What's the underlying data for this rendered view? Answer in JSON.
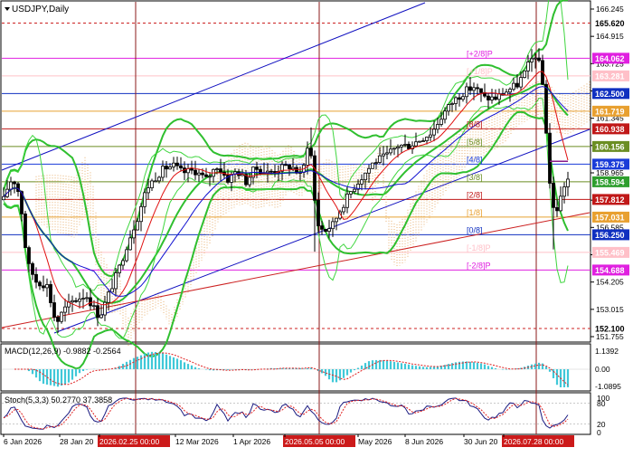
{
  "window": {
    "title": "USDJPY,Daily"
  },
  "price_axis": {
    "plain_ticks": [
      "166.245",
      "164.915",
      "163.725",
      "162.535",
      "161.345",
      "160.155",
      "158.965",
      "157.775",
      "156.585",
      "155.710",
      "154.205",
      "153.015",
      "151.755"
    ],
    "level_labels": [
      {
        "text": "165.620",
        "price": 165.62,
        "bg": "#ffffff",
        "fg": "#000000",
        "line": "#cc2222",
        "dash": true
      },
      {
        "text": "164.062",
        "price": 164.062,
        "bg": "#e020e0",
        "fg": "#ffffff",
        "line": "#e020e0",
        "dash": false
      },
      {
        "text": "163.281",
        "price": 163.281,
        "bg": "#ffc0c8",
        "fg": "#ffffff",
        "line": "#ffc0c8",
        "dash": false
      },
      {
        "text": "162.500",
        "price": 162.5,
        "bg": "#1030c0",
        "fg": "#ffffff",
        "line": "#1030c0",
        "dash": false
      },
      {
        "text": "161.719",
        "price": 161.719,
        "bg": "#e8a030",
        "fg": "#ffffff",
        "line": "#e8a030",
        "dash": false
      },
      {
        "text": "160.938",
        "price": 160.938,
        "bg": "#c01818",
        "fg": "#ffffff",
        "line": "#c01818",
        "dash": false
      },
      {
        "text": "160.156",
        "price": 160.156,
        "bg": "#6b8e23",
        "fg": "#ffffff",
        "line": "#6b8e23",
        "dash": false
      },
      {
        "text": "159.375",
        "price": 159.375,
        "bg": "#1a3cd8",
        "fg": "#ffffff",
        "line": "#1a3cd8",
        "dash": false
      },
      {
        "text": "158.594",
        "price": 158.594,
        "bg": "#2e9e2e",
        "fg": "#ffffff",
        "line": "#6b8e23",
        "dash": false
      },
      {
        "text": "157.812",
        "price": 157.812,
        "bg": "#c01818",
        "fg": "#ffffff",
        "line": "#c01818",
        "dash": false
      },
      {
        "text": "157.031",
        "price": 157.031,
        "bg": "#e8a030",
        "fg": "#ffffff",
        "line": "#e8a030",
        "dash": false
      },
      {
        "text": "156.250",
        "price": 156.25,
        "bg": "#1030c0",
        "fg": "#ffffff",
        "line": "#1030c0",
        "dash": false
      },
      {
        "text": "155.469",
        "price": 155.469,
        "bg": "#ffc0c8",
        "fg": "#ffffff",
        "line": "#ffc0c8",
        "dash": false
      },
      {
        "text": "154.688",
        "price": 154.688,
        "bg": "#e020e0",
        "fg": "#ffffff",
        "line": "#e020e0",
        "dash": false
      },
      {
        "text": "152.100",
        "price": 152.1,
        "bg": "#ffffff",
        "fg": "#000000",
        "line": "#cc2222",
        "dash": true
      }
    ]
  },
  "murrey_labels": [
    {
      "text": "[+2/8]P",
      "price": 164.062,
      "color": "#e020e0"
    },
    {
      "text": "[+1/8]P",
      "price": 163.281,
      "color": "#ffc0c8"
    },
    {
      "text": "[8/8]",
      "price": 160.938,
      "color": "#c01818"
    },
    {
      "text": "[5/8]",
      "price": 160.156,
      "color": "#6b8e23"
    },
    {
      "text": "[4/8]",
      "price": 159.375,
      "color": "#1a3cd8"
    },
    {
      "text": "[3/8]",
      "price": 158.594,
      "color": "#6b8e23"
    },
    {
      "text": "[2/8]",
      "price": 157.812,
      "color": "#c01818"
    },
    {
      "text": "[1/8]",
      "price": 157.031,
      "color": "#e8a030"
    },
    {
      "text": "[0/8]",
      "price": 156.25,
      "color": "#1030c0"
    },
    {
      "text": "[-1/8]P",
      "price": 155.469,
      "color": "#ffc0c8"
    },
    {
      "text": "[-2/8]P",
      "price": 154.688,
      "color": "#e020e0"
    }
  ],
  "macd": {
    "label": "MACD(12,26,9) -0.9882 -0.2564",
    "ticks": [
      "1.1392",
      "0.00",
      "-1.0895"
    ]
  },
  "stoch": {
    "label": "Stoch(5,3,3) 50.2770 37.3858",
    "ticks": [
      "100",
      "80",
      "20",
      "0"
    ]
  },
  "time_axis": {
    "labels": [
      {
        "text": "6 Jan 2026",
        "highlight": false
      },
      {
        "text": "28 Jan 20",
        "highlight": false
      },
      {
        "text": "2026.02.25 00:00",
        "highlight": true
      },
      {
        "text": "12 Mar 2026",
        "highlight": false
      },
      {
        "text": "1 Apr 2026",
        "highlight": false
      },
      {
        "text": "2026.05.05 00:00",
        "highlight": true
      },
      {
        "text": "May 2026",
        "highlight": false
      },
      {
        "text": "8 Jun 2026",
        "highlight": false
      },
      {
        "text": "30 Jun 20",
        "highlight": false
      },
      {
        "text": "2026.07.28 00:00",
        "highlight": true
      }
    ]
  },
  "colors": {
    "candle": "#000000",
    "bollinger": "#2fbf2f",
    "bollinger_mid": "#2fbf2f",
    "envelope": "#3fd63f",
    "tenkan": "#e01010",
    "kijun": "#1010d0",
    "cloud": "#e8b070",
    "vline": "#8b1a1a",
    "macd_hist": "#40c8d8",
    "macd_signal": "#e02020",
    "stoch_main": "#1a1a80",
    "stoch_signal": "#e02020",
    "highlight_bg": "#cc1a1a"
  }
}
